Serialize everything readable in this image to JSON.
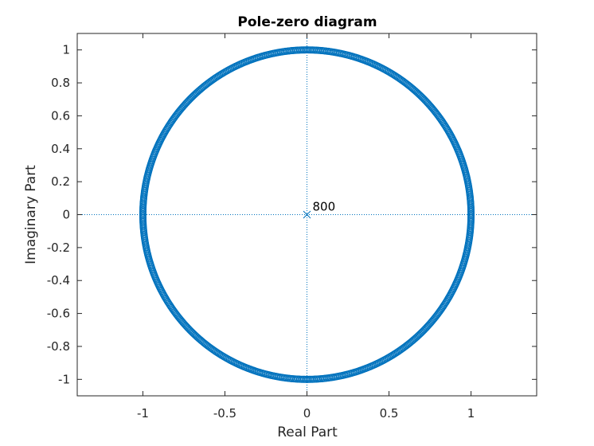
{
  "chart_data": {
    "type": "scatter",
    "title": "Pole-zero diagram",
    "xlabel": "Real Part",
    "ylabel": "Imaginary Part",
    "xlim": [
      -1.4,
      1.4
    ],
    "ylim": [
      -1.1,
      1.1
    ],
    "xticks": [
      -1,
      -0.5,
      0,
      0.5,
      1
    ],
    "xtick_labels": [
      "-1",
      "-0.5",
      "0",
      "0.5",
      "1"
    ],
    "yticks": [
      1,
      0.8,
      0.6,
      0.4,
      0.2,
      0,
      -0.2,
      -0.4,
      -0.6,
      -0.8,
      -1
    ],
    "ytick_labels": [
      "1",
      "0.8",
      "0.6",
      "0.4",
      "0.2",
      "0",
      "-0.2",
      "-0.4",
      "-0.6",
      "-0.8",
      "-1"
    ],
    "grid": false,
    "zero_lines": true,
    "series": [
      {
        "marker": "o",
        "color": "#0072BD",
        "on_unit_circle": true,
        "count": 800
      },
      {
        "marker": "x",
        "color": "#0072BD",
        "points": [
          [
            0,
            0
          ]
        ],
        "multiplicity": 800
      }
    ],
    "annotations": [
      {
        "text": "800",
        "x": 0,
        "y": 0
      }
    ]
  }
}
